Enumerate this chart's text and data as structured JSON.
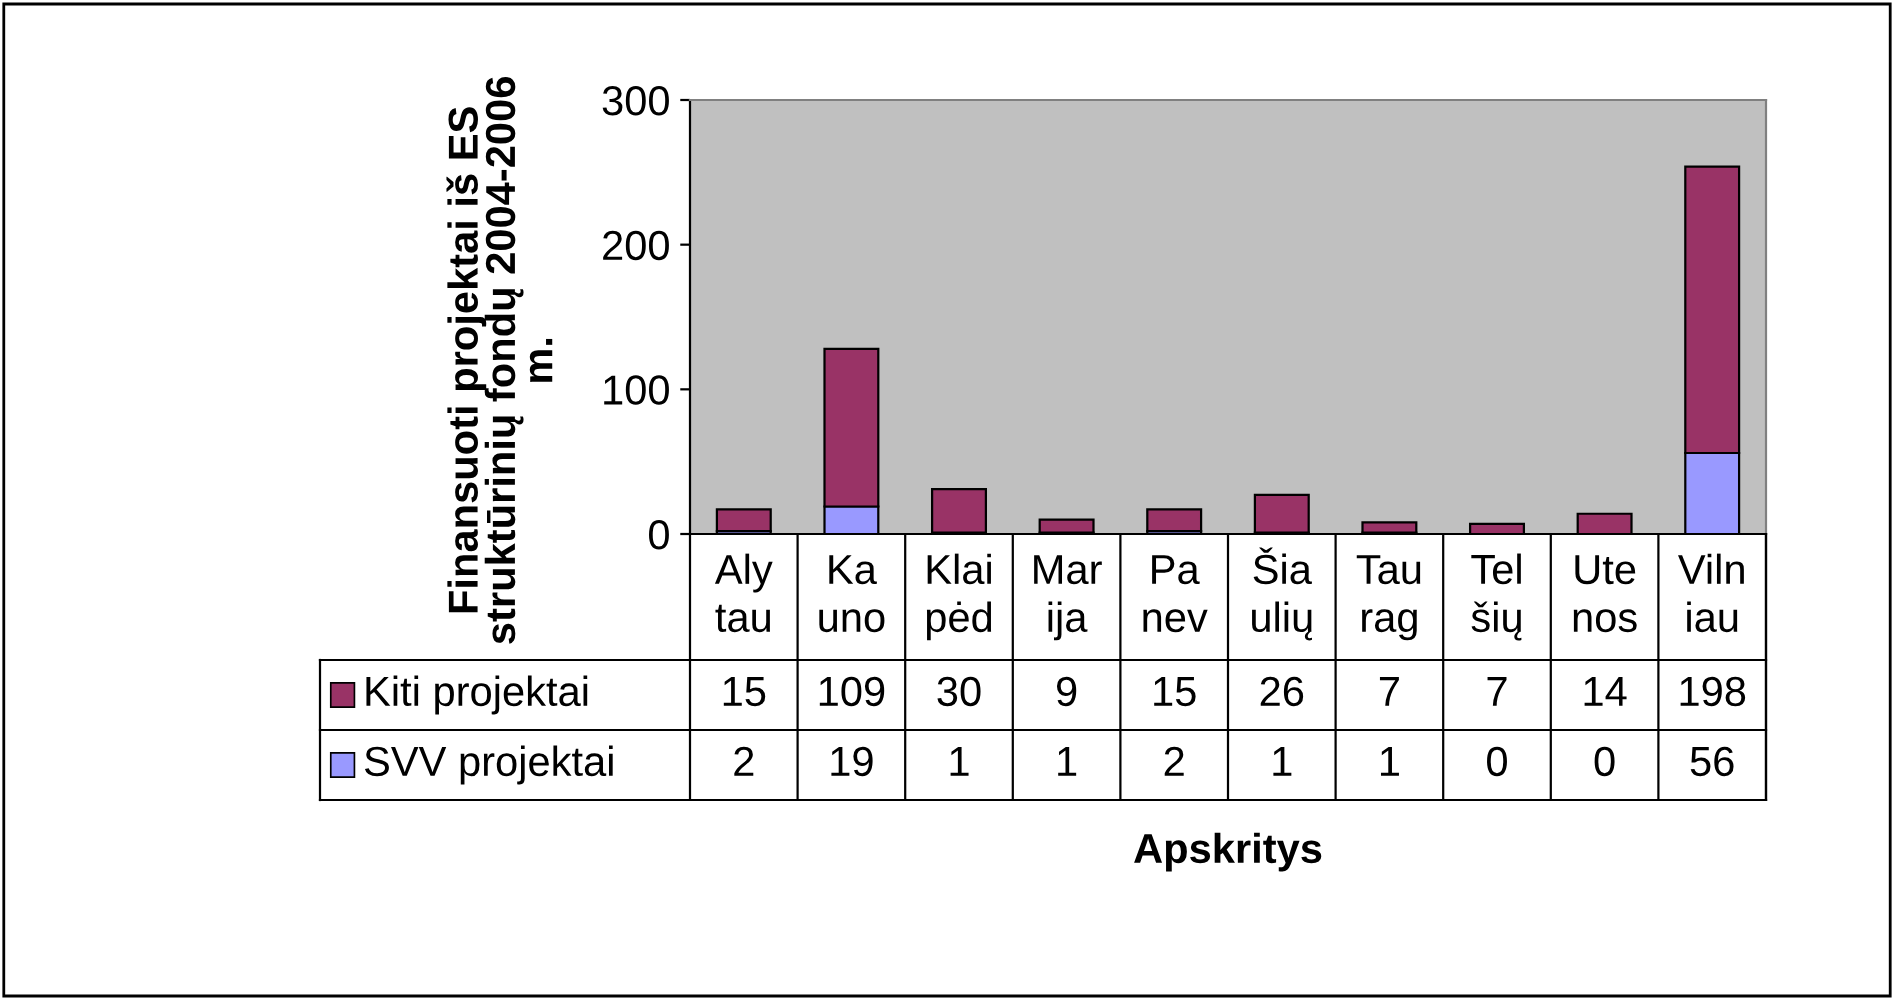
{
  "chart_data": {
    "type": "bar",
    "stacked": true,
    "ylabel": "Finansuoti projektai iš ES\nstruktūrinių fondų 2004-2006\nm.",
    "xlabel": "Apskritys",
    "categories": [
      "Aly\ntau",
      "Ka\nuno",
      "Klai\npėd",
      "Mar\nija",
      "Pa\nnev",
      "Šia\nulių",
      "Tau\nrag",
      "Tel\nšių",
      "Ute\nnos",
      "Viln\niau"
    ],
    "series": [
      {
        "name": "SVV projektai",
        "color": "#9999ff",
        "values": [
          2,
          19,
          1,
          1,
          2,
          1,
          1,
          0,
          0,
          56
        ]
      },
      {
        "name": "Kiti projektai",
        "color": "#993366",
        "values": [
          15,
          109,
          30,
          9,
          15,
          26,
          7,
          7,
          14,
          198
        ]
      }
    ],
    "ylim": [
      0,
      300
    ],
    "yticks": [
      0,
      100,
      200,
      300
    ],
    "grid": false,
    "legend": "left",
    "data_labels": true
  }
}
